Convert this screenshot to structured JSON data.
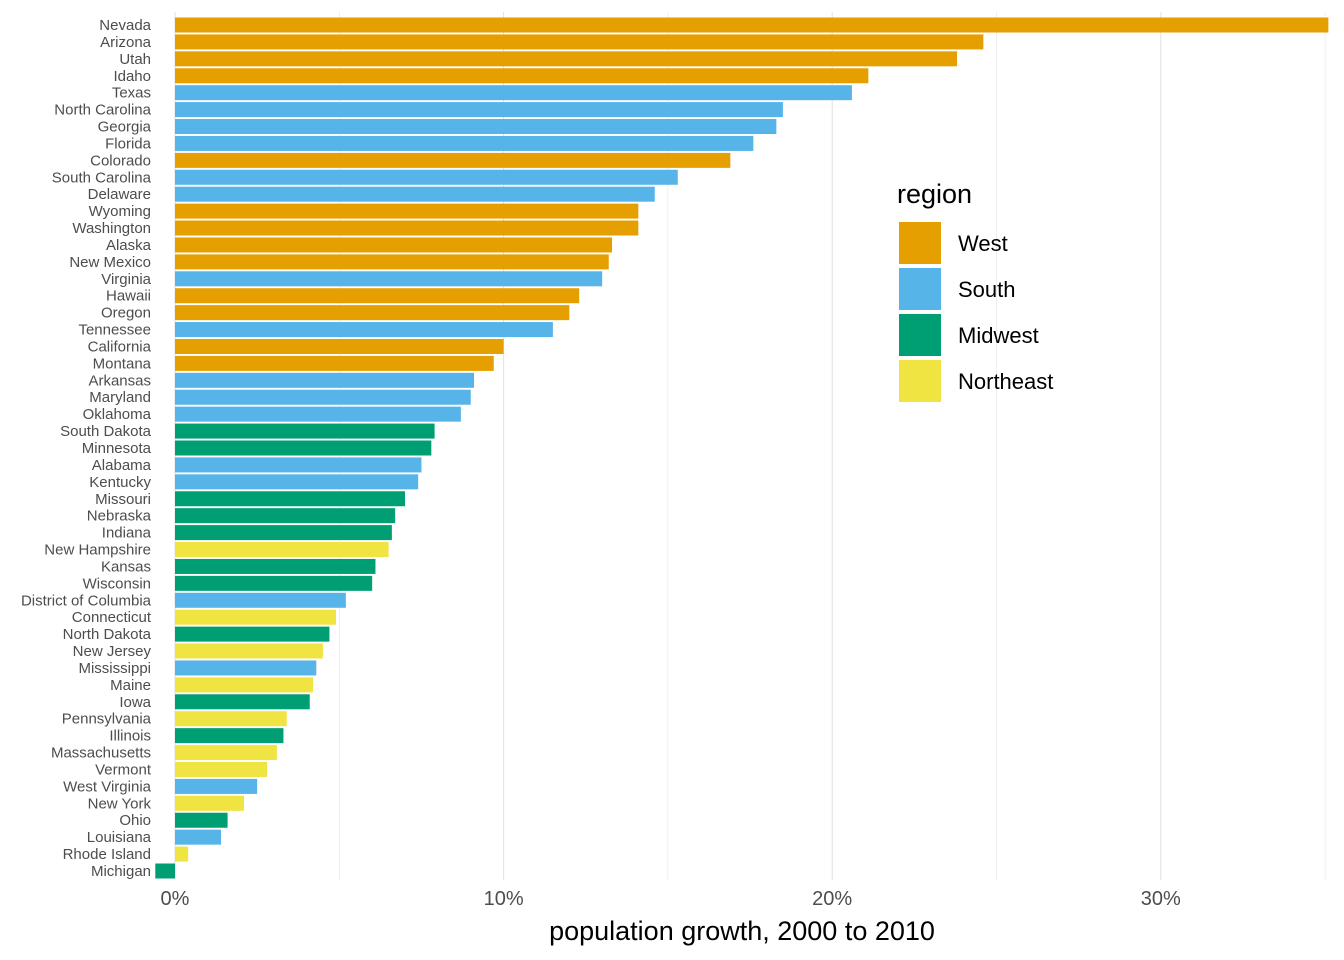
{
  "chart_data": {
    "type": "bar",
    "orientation": "horizontal",
    "xlabel": "population growth, 2000 to 2010",
    "xlim": [
      -0.6,
      35.1
    ],
    "x_ticks": [
      0,
      10,
      20,
      30
    ],
    "x_tick_labels": [
      "0%",
      "10%",
      "20%",
      "30%"
    ],
    "grid": true,
    "legend": {
      "title": "region",
      "placement": "right-inside",
      "entries": [
        {
          "name": "West",
          "color": "#E69F00"
        },
        {
          "name": "South",
          "color": "#56B4E9"
        },
        {
          "name": "Midwest",
          "color": "#009E73"
        },
        {
          "name": "Northeast",
          "color": "#F0E442"
        }
      ]
    },
    "rows": [
      {
        "state": "Nevada",
        "value": 35.1,
        "region": "West"
      },
      {
        "state": "Arizona",
        "value": 24.6,
        "region": "West"
      },
      {
        "state": "Utah",
        "value": 23.8,
        "region": "West"
      },
      {
        "state": "Idaho",
        "value": 21.1,
        "region": "West"
      },
      {
        "state": "Texas",
        "value": 20.6,
        "region": "South"
      },
      {
        "state": "North Carolina",
        "value": 18.5,
        "region": "South"
      },
      {
        "state": "Georgia",
        "value": 18.3,
        "region": "South"
      },
      {
        "state": "Florida",
        "value": 17.6,
        "region": "South"
      },
      {
        "state": "Colorado",
        "value": 16.9,
        "region": "West"
      },
      {
        "state": "South Carolina",
        "value": 15.3,
        "region": "South"
      },
      {
        "state": "Delaware",
        "value": 14.6,
        "region": "South"
      },
      {
        "state": "Wyoming",
        "value": 14.1,
        "region": "West"
      },
      {
        "state": "Washington",
        "value": 14.1,
        "region": "West"
      },
      {
        "state": "Alaska",
        "value": 13.3,
        "region": "West"
      },
      {
        "state": "New Mexico",
        "value": 13.2,
        "region": "West"
      },
      {
        "state": "Virginia",
        "value": 13.0,
        "region": "South"
      },
      {
        "state": "Hawaii",
        "value": 12.3,
        "region": "West"
      },
      {
        "state": "Oregon",
        "value": 12.0,
        "region": "West"
      },
      {
        "state": "Tennessee",
        "value": 11.5,
        "region": "South"
      },
      {
        "state": "California",
        "value": 10.0,
        "region": "West"
      },
      {
        "state": "Montana",
        "value": 9.7,
        "region": "West"
      },
      {
        "state": "Arkansas",
        "value": 9.1,
        "region": "South"
      },
      {
        "state": "Maryland",
        "value": 9.0,
        "region": "South"
      },
      {
        "state": "Oklahoma",
        "value": 8.7,
        "region": "South"
      },
      {
        "state": "South Dakota",
        "value": 7.9,
        "region": "Midwest"
      },
      {
        "state": "Minnesota",
        "value": 7.8,
        "region": "Midwest"
      },
      {
        "state": "Alabama",
        "value": 7.5,
        "region": "South"
      },
      {
        "state": "Kentucky",
        "value": 7.4,
        "region": "South"
      },
      {
        "state": "Missouri",
        "value": 7.0,
        "region": "Midwest"
      },
      {
        "state": "Nebraska",
        "value": 6.7,
        "region": "Midwest"
      },
      {
        "state": "Indiana",
        "value": 6.6,
        "region": "Midwest"
      },
      {
        "state": "New Hampshire",
        "value": 6.5,
        "region": "Northeast"
      },
      {
        "state": "Kansas",
        "value": 6.1,
        "region": "Midwest"
      },
      {
        "state": "Wisconsin",
        "value": 6.0,
        "region": "Midwest"
      },
      {
        "state": "District of Columbia",
        "value": 5.2,
        "region": "South"
      },
      {
        "state": "Connecticut",
        "value": 4.9,
        "region": "Northeast"
      },
      {
        "state": "North Dakota",
        "value": 4.7,
        "region": "Midwest"
      },
      {
        "state": "New Jersey",
        "value": 4.5,
        "region": "Northeast"
      },
      {
        "state": "Mississippi",
        "value": 4.3,
        "region": "South"
      },
      {
        "state": "Maine",
        "value": 4.2,
        "region": "Northeast"
      },
      {
        "state": "Iowa",
        "value": 4.1,
        "region": "Midwest"
      },
      {
        "state": "Pennsylvania",
        "value": 3.4,
        "region": "Northeast"
      },
      {
        "state": "Illinois",
        "value": 3.3,
        "region": "Midwest"
      },
      {
        "state": "Massachusetts",
        "value": 3.1,
        "region": "Northeast"
      },
      {
        "state": "Vermont",
        "value": 2.8,
        "region": "Northeast"
      },
      {
        "state": "West Virginia",
        "value": 2.5,
        "region": "South"
      },
      {
        "state": "New York",
        "value": 2.1,
        "region": "Northeast"
      },
      {
        "state": "Ohio",
        "value": 1.6,
        "region": "Midwest"
      },
      {
        "state": "Louisiana",
        "value": 1.4,
        "region": "South"
      },
      {
        "state": "Rhode Island",
        "value": 0.4,
        "region": "Northeast"
      },
      {
        "state": "Michigan",
        "value": -0.6,
        "region": "Midwest"
      }
    ]
  }
}
